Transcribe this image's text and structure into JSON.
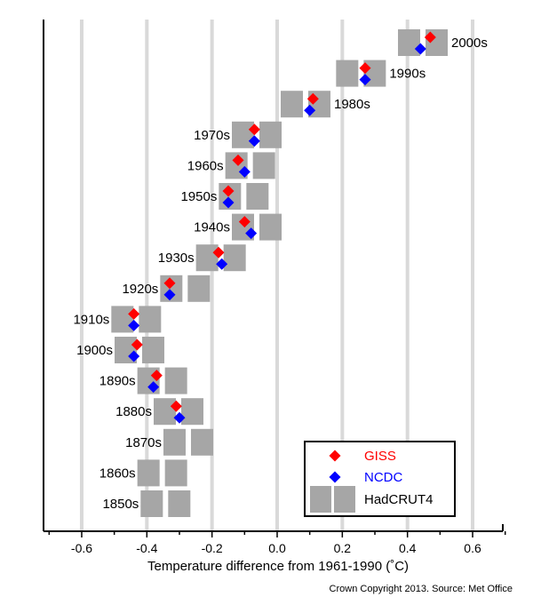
{
  "chart_data": {
    "type": "scatter",
    "xlabel": "Temperature difference from 1961-1990 (˚C)",
    "credit": "Crown Copyright 2013. Source: Met Office",
    "xlim": [
      -0.72,
      0.72
    ],
    "xticks": [
      -0.6,
      -0.4,
      -0.2,
      0.0,
      0.2,
      0.4,
      0.6
    ],
    "xtick_labels": [
      "-0.6",
      "-0.4",
      "-0.2",
      "0.0",
      "0.2",
      "0.4",
      "0.6"
    ],
    "grid": "vertical",
    "legend_position": "bottom-right",
    "decades": [
      "2000s",
      "1990s",
      "1980s",
      "1970s",
      "1960s",
      "1950s",
      "1940s",
      "1930s",
      "1920s",
      "1910s",
      "1900s",
      "1890s",
      "1880s",
      "1870s",
      "1860s",
      "1850s"
    ],
    "series": [
      {
        "name": "GISS",
        "marker": "diamond",
        "color": "#ff0000",
        "values": [
          0.47,
          0.27,
          0.11,
          -0.07,
          -0.12,
          -0.15,
          -0.1,
          -0.18,
          -0.33,
          -0.44,
          -0.43,
          -0.37,
          -0.31,
          null,
          null,
          null
        ]
      },
      {
        "name": "NCDC",
        "marker": "diamond",
        "color": "#0000ff",
        "values": [
          0.44,
          0.27,
          0.1,
          -0.07,
          -0.1,
          -0.15,
          -0.08,
          -0.17,
          -0.33,
          -0.44,
          -0.44,
          -0.38,
          -0.3,
          null,
          null,
          null
        ]
      },
      {
        "name": "HadCRUT4",
        "marker": "paired-box",
        "color": "#a6a6a6",
        "values": [
          0.45,
          0.26,
          0.09,
          -0.06,
          -0.08,
          -0.1,
          -0.06,
          -0.17,
          -0.28,
          -0.43,
          -0.42,
          -0.35,
          -0.3,
          -0.27,
          -0.35,
          -0.34
        ]
      }
    ]
  },
  "colors": {
    "grid": "#d9d9d9",
    "axis": "#000000",
    "box": "#a6a6a6"
  }
}
